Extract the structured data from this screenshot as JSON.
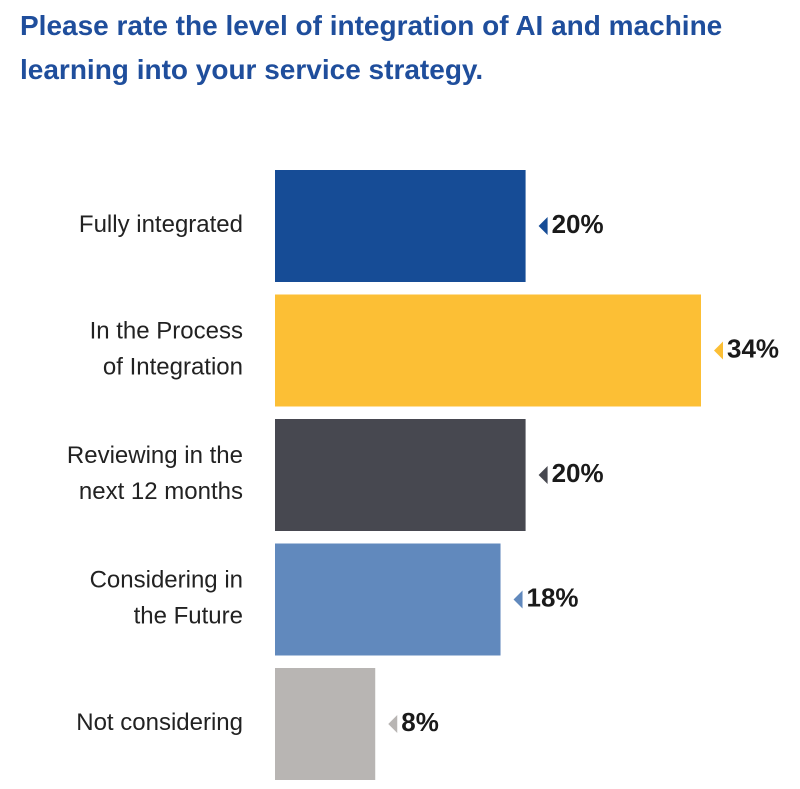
{
  "title": "Please rate the level of integration of AI and machine learning into your service strategy.",
  "chart_data": {
    "type": "bar",
    "orientation": "horizontal",
    "title": "Please rate the level of integration of AI and machine learning into your service strategy.",
    "categories": [
      [
        "Fully integrated"
      ],
      [
        "In the Process",
        "of Integration"
      ],
      [
        "Reviewing in the",
        "next 12 months"
      ],
      [
        "Considering in",
        "the Future"
      ],
      [
        "Not considering"
      ]
    ],
    "values": [
      20,
      34,
      20,
      18,
      8
    ],
    "value_labels": [
      "20%",
      "34%",
      "20%",
      "18%",
      "8%"
    ],
    "colors": [
      "#164c96",
      "#fcbf35",
      "#474850",
      "#6189bd",
      "#b8b5b3"
    ],
    "xlim": [
      0,
      34
    ],
    "grid": false,
    "legend": "none"
  }
}
